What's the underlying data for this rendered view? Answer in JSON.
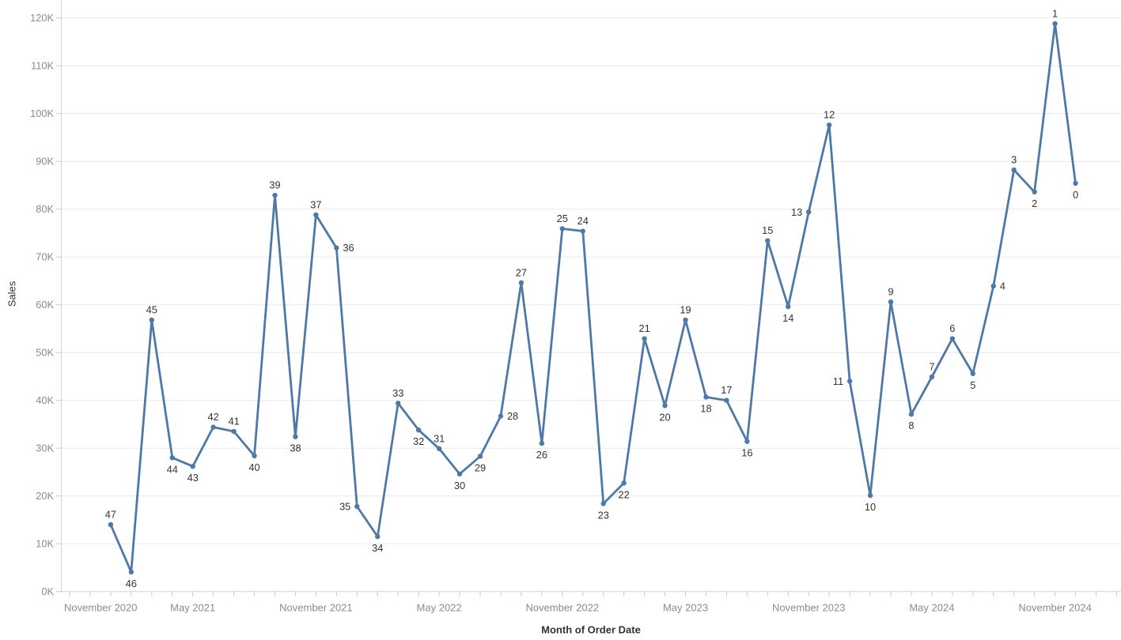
{
  "chart_data": {
    "type": "line",
    "title": "",
    "xlabel": "Month of Order Date",
    "ylabel": "Sales",
    "line_color": "#4e79a7",
    "label_color": "#333333",
    "tick_label_color": "#8b8b8b",
    "grid_color": "#e9e9e9",
    "axis_line_color": "#d4d4d4",
    "tick_mark_color": "#c9c9c9",
    "grid": true,
    "legend": "none",
    "ylim": [
      0,
      120000
    ],
    "y_tick_labels": [
      "0K",
      "10K",
      "20K",
      "30K",
      "40K",
      "50K",
      "60K",
      "70K",
      "80K",
      "90K",
      "100K",
      "110K",
      "120K"
    ],
    "x_tick_labels": [
      "November 2020",
      "May 2021",
      "November 2021",
      "May 2022",
      "November 2022",
      "May 2023",
      "November 2023",
      "May 2024",
      "November 2024"
    ],
    "points": [
      {
        "label": "47",
        "month": "January 2021",
        "sales": 14000,
        "label_pos": "above"
      },
      {
        "label": "46",
        "month": "February 2021",
        "sales": 4100,
        "label_pos": "below"
      },
      {
        "label": "45",
        "month": "March 2021",
        "sales": 56800,
        "label_pos": "above"
      },
      {
        "label": "44",
        "month": "April 2021",
        "sales": 28000,
        "label_pos": "below"
      },
      {
        "label": "43",
        "month": "May 2021",
        "sales": 26200,
        "label_pos": "below"
      },
      {
        "label": "42",
        "month": "June 2021",
        "sales": 34400,
        "label_pos": "above"
      },
      {
        "label": "41",
        "month": "July 2021",
        "sales": 33500,
        "label_pos": "above"
      },
      {
        "label": "40",
        "month": "August 2021",
        "sales": 28400,
        "label_pos": "below"
      },
      {
        "label": "39",
        "month": "September 2021",
        "sales": 82900,
        "label_pos": "above"
      },
      {
        "label": "38",
        "month": "October 2021",
        "sales": 32400,
        "label_pos": "below"
      },
      {
        "label": "37",
        "month": "November 2021",
        "sales": 78800,
        "label_pos": "above"
      },
      {
        "label": "36",
        "month": "December 2021",
        "sales": 71900,
        "label_pos": "right"
      },
      {
        "label": "35",
        "month": "January 2022",
        "sales": 17800,
        "label_pos": "left"
      },
      {
        "label": "34",
        "month": "February 2022",
        "sales": 11500,
        "label_pos": "below"
      },
      {
        "label": "33",
        "month": "March 2022",
        "sales": 39400,
        "label_pos": "above"
      },
      {
        "label": "32",
        "month": "April 2022",
        "sales": 33800,
        "label_pos": "below"
      },
      {
        "label": "31",
        "month": "May 2022",
        "sales": 29900,
        "label_pos": "above"
      },
      {
        "label": "30",
        "month": "June 2022",
        "sales": 24600,
        "label_pos": "below"
      },
      {
        "label": "29",
        "month": "July 2022",
        "sales": 28300,
        "label_pos": "below"
      },
      {
        "label": "28",
        "month": "August 2022",
        "sales": 36700,
        "label_pos": "right"
      },
      {
        "label": "27",
        "month": "September 2022",
        "sales": 64600,
        "label_pos": "above"
      },
      {
        "label": "26",
        "month": "October 2022",
        "sales": 31000,
        "label_pos": "below"
      },
      {
        "label": "25",
        "month": "November 2022",
        "sales": 75900,
        "label_pos": "above"
      },
      {
        "label": "24",
        "month": "December 2022",
        "sales": 75400,
        "label_pos": "above"
      },
      {
        "label": "23",
        "month": "January 2023",
        "sales": 18400,
        "label_pos": "below"
      },
      {
        "label": "22",
        "month": "February 2023",
        "sales": 22700,
        "label_pos": "below"
      },
      {
        "label": "21",
        "month": "March 2023",
        "sales": 52900,
        "label_pos": "above"
      },
      {
        "label": "20",
        "month": "April 2023",
        "sales": 38900,
        "label_pos": "below"
      },
      {
        "label": "19",
        "month": "May 2023",
        "sales": 56800,
        "label_pos": "above"
      },
      {
        "label": "18",
        "month": "June 2023",
        "sales": 40700,
        "label_pos": "below"
      },
      {
        "label": "17",
        "month": "July 2023",
        "sales": 40000,
        "label_pos": "above"
      },
      {
        "label": "16",
        "month": "August 2023",
        "sales": 31400,
        "label_pos": "below"
      },
      {
        "label": "15",
        "month": "September 2023",
        "sales": 73400,
        "label_pos": "above"
      },
      {
        "label": "14",
        "month": "October 2023",
        "sales": 59600,
        "label_pos": "below"
      },
      {
        "label": "13",
        "month": "November 2023",
        "sales": 79400,
        "label_pos": "left"
      },
      {
        "label": "12",
        "month": "December 2023",
        "sales": 97600,
        "label_pos": "above"
      },
      {
        "label": "11",
        "month": "January 2024",
        "sales": 44000,
        "label_pos": "left"
      },
      {
        "label": "10",
        "month": "February 2024",
        "sales": 20100,
        "label_pos": "below"
      },
      {
        "label": "9",
        "month": "March 2024",
        "sales": 60600,
        "label_pos": "above"
      },
      {
        "label": "8",
        "month": "April 2024",
        "sales": 37100,
        "label_pos": "below"
      },
      {
        "label": "7",
        "month": "May 2024",
        "sales": 44900,
        "label_pos": "above"
      },
      {
        "label": "6",
        "month": "June 2024",
        "sales": 52900,
        "label_pos": "above"
      },
      {
        "label": "5",
        "month": "July 2024",
        "sales": 45600,
        "label_pos": "below"
      },
      {
        "label": "4",
        "month": "August 2024",
        "sales": 63900,
        "label_pos": "right"
      },
      {
        "label": "3",
        "month": "September 2024",
        "sales": 88200,
        "label_pos": "above"
      },
      {
        "label": "2",
        "month": "October 2024",
        "sales": 83600,
        "label_pos": "below"
      },
      {
        "label": "1",
        "month": "November 2024",
        "sales": 118800,
        "label_pos": "above"
      },
      {
        "label": "0",
        "month": "December 2024",
        "sales": 85400,
        "label_pos": "below"
      }
    ]
  }
}
